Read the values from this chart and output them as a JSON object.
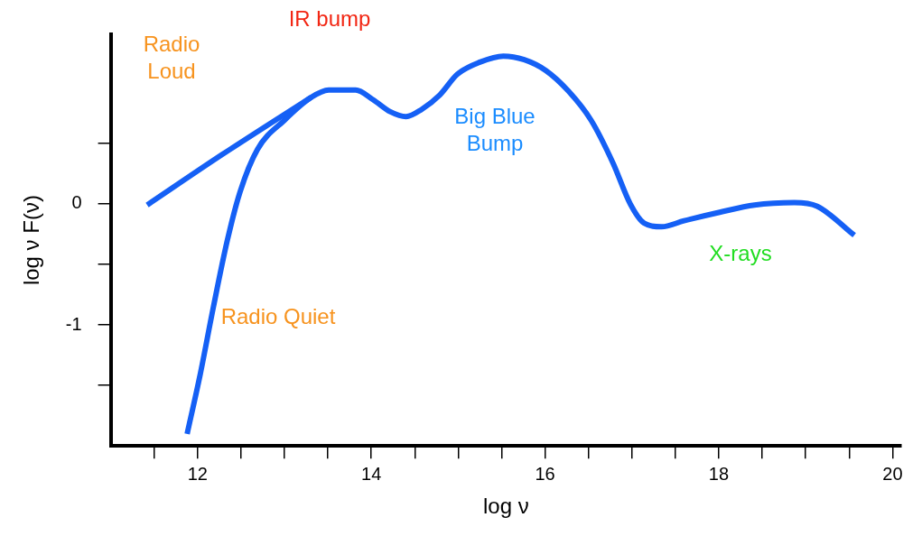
{
  "chart_data": {
    "type": "line",
    "xlabel": "log ν",
    "ylabel": "log ν F(ν)",
    "xlim": [
      11,
      20.1
    ],
    "ylim": [
      -2,
      1.4
    ],
    "xticks": [
      {
        "value": 11.5,
        "label": null
      },
      {
        "value": 12,
        "label": "12"
      },
      {
        "value": 12.5,
        "label": null
      },
      {
        "value": 13,
        "label": null
      },
      {
        "value": 13.5,
        "label": null
      },
      {
        "value": 14,
        "label": "14"
      },
      {
        "value": 14.5,
        "label": null
      },
      {
        "value": 15,
        "label": null
      },
      {
        "value": 15.5,
        "label": null
      },
      {
        "value": 16,
        "label": "16"
      },
      {
        "value": 16.5,
        "label": null
      },
      {
        "value": 17,
        "label": null
      },
      {
        "value": 17.5,
        "label": null
      },
      {
        "value": 18,
        "label": "18"
      },
      {
        "value": 18.5,
        "label": null
      },
      {
        "value": 19,
        "label": null
      },
      {
        "value": 19.5,
        "label": null
      },
      {
        "value": 20,
        "label": "20"
      }
    ],
    "yticks": [
      {
        "value": -1.5,
        "label": null
      },
      {
        "value": -1,
        "label": "-1"
      },
      {
        "value": -0.5,
        "label": null
      },
      {
        "value": 0,
        "label": "0"
      },
      {
        "value": 0.5,
        "label": null
      }
    ],
    "grid": false,
    "legend": false,
    "marker": "none",
    "line_style": "solid",
    "series": [
      {
        "color": "#1560f5",
        "x": [
          11.42,
          12.29,
          13.2,
          13.31
        ],
        "values": [
          -0.01,
          0.41,
          0.83,
          0.88
        ]
      },
      {
        "color": "#1560f5",
        "x": [
          11.88,
          12.03,
          12.18,
          12.34,
          12.49,
          12.69,
          13.0,
          13.31,
          13.51,
          13.82,
          14.02,
          14.22,
          14.4,
          14.58,
          14.79,
          14.99,
          15.25,
          15.52,
          15.76,
          16.01,
          16.27,
          16.53,
          16.78,
          16.98,
          17.14,
          17.34,
          17.6,
          18.01,
          18.41,
          18.87,
          19.13,
          19.56
        ],
        "values": [
          -1.9,
          -1.41,
          -0.86,
          -0.31,
          0.1,
          0.45,
          0.69,
          0.88,
          0.94,
          0.94,
          0.86,
          0.76,
          0.72,
          0.78,
          0.9,
          1.07,
          1.17,
          1.22,
          1.19,
          1.1,
          0.93,
          0.69,
          0.34,
          0.0,
          -0.16,
          -0.19,
          -0.14,
          -0.07,
          -0.01,
          0.01,
          -0.02,
          -0.26
        ]
      }
    ],
    "annotations": [
      "Radio\nLoud",
      "IR bump",
      "Big Blue\nBump",
      "X-rays",
      "Radio Quiet"
    ]
  }
}
